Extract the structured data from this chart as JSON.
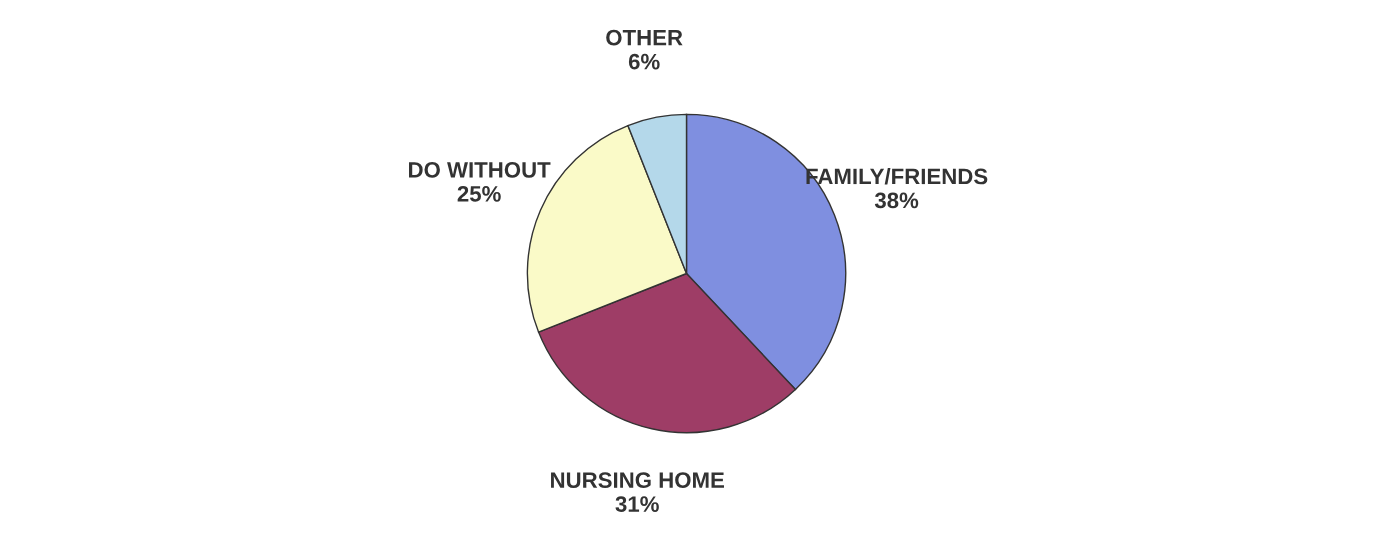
{
  "chart_data": {
    "type": "pie",
    "categories": [
      "FAMILY/FRIENDS",
      "NURSING HOME",
      "DO WITHOUT",
      "OTHER"
    ],
    "values": [
      38,
      31,
      25,
      6
    ],
    "value_labels": [
      "38%",
      "31%",
      "25%",
      "6%"
    ],
    "colors": [
      "#7f8fe0",
      "#9e3d66",
      "#fafac8",
      "#b4d8ea"
    ]
  }
}
